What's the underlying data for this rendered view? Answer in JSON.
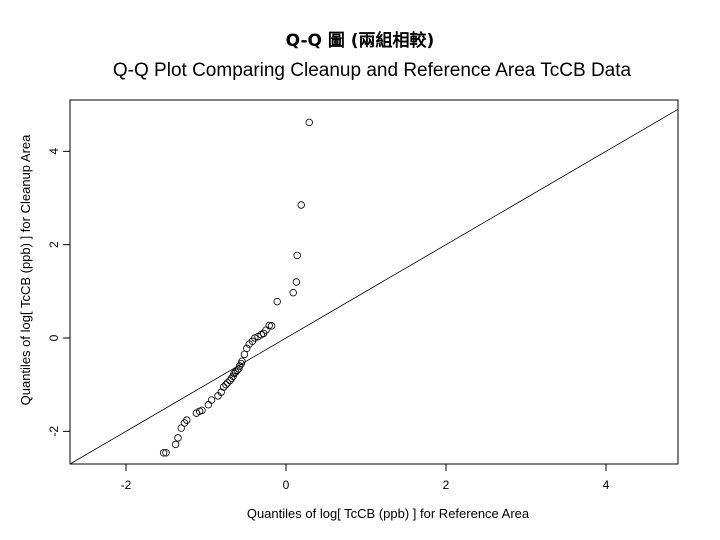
{
  "slide": {
    "title": "Q-Q 圖 (兩組相較)"
  },
  "chart_data": {
    "type": "scatter",
    "title": "Q-Q Plot Comparing Cleanup and Reference Area TcCB Data",
    "xlabel": "Quantiles of log[ TcCB (ppb) ] for Reference Area",
    "ylabel": "Quantiles of log[ TcCB (ppb) ] for Cleanup Area",
    "xlim": [
      -2.7,
      4.9
    ],
    "ylim": [
      -2.7,
      5.1
    ],
    "xticks": [
      -2,
      0,
      2,
      4
    ],
    "yticks": [
      -2,
      0,
      2,
      4
    ],
    "grid": false,
    "marker": "open-circle",
    "reference_line": {
      "label": "",
      "points": [
        [
          -2.7,
          -2.7
        ],
        [
          4.9,
          4.9
        ]
      ]
    },
    "series": [
      {
        "name": "",
        "x": [
          -1.53,
          -1.5,
          -1.38,
          -1.35,
          -1.31,
          -1.27,
          -1.24,
          -1.12,
          -1.08,
          -1.05,
          -0.97,
          -0.93,
          -0.85,
          -0.81,
          -0.78,
          -0.75,
          -0.73,
          -0.7,
          -0.68,
          -0.66,
          -0.65,
          -0.63,
          -0.61,
          -0.59,
          -0.58,
          -0.56,
          -0.55,
          -0.52,
          -0.49,
          -0.46,
          -0.42,
          -0.39,
          -0.35,
          -0.31,
          -0.28,
          -0.25,
          -0.21,
          -0.18,
          -0.11,
          0.09,
          0.13,
          0.14,
          0.19,
          0.29
        ],
        "y": [
          -2.46,
          -2.46,
          -2.28,
          -2.14,
          -1.93,
          -1.82,
          -1.76,
          -1.61,
          -1.57,
          -1.55,
          -1.43,
          -1.33,
          -1.24,
          -1.16,
          -1.05,
          -1.0,
          -0.96,
          -0.91,
          -0.86,
          -0.82,
          -0.76,
          -0.73,
          -0.69,
          -0.66,
          -0.6,
          -0.55,
          -0.5,
          -0.35,
          -0.22,
          -0.13,
          -0.07,
          0.0,
          0.03,
          0.07,
          0.1,
          0.17,
          0.27,
          0.26,
          0.78,
          0.97,
          1.2,
          1.77,
          2.85,
          4.62
        ]
      }
    ]
  }
}
